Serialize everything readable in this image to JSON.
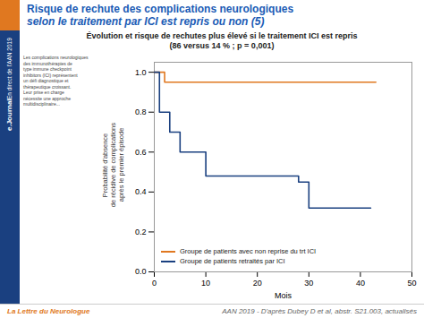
{
  "chart_data": {
    "type": "line",
    "line_style": "step",
    "title": "Risque de rechute des complications neurologiques\nselon le traitement par ICI est repris ou non (5)",
    "subtitle": "Évolution et risque de rechutes plus élevé si le traitement ICI est repris\n(86 versus 14 % ; p = 0,001)",
    "x_label": "Mois",
    "y_label": "Probabilité d'absence\nde récidive de complications\naprès le premier épisode",
    "series": [
      {
        "name": "Groupe de patients avec non reprise du trt ICI",
        "color": "#E07820",
        "x": [
          0,
          0,
          2,
          43
        ],
        "values": [
          1.0,
          1.0,
          0.95,
          0.95
        ]
      },
      {
        "name": "Groupe de patients retraités par ICI",
        "color": "#1A4080",
        "x": [
          0,
          1,
          3,
          5,
          10,
          28,
          30,
          36,
          42
        ],
        "values": [
          1.0,
          0.8,
          0.7,
          0.6,
          0.48,
          0.45,
          0.32,
          0.32,
          0.32
        ]
      }
    ],
    "xlim": [
      0,
      50
    ],
    "ylim": [
      0.0,
      1.05
    ],
    "xticks": [
      0,
      10,
      20,
      30,
      40,
      50
    ],
    "yticks": [
      {
        "value": 0,
        "label": "0.0"
      },
      0.2,
      0.4,
      0.6,
      0.8,
      {
        "value": 1,
        "label": "1.0"
      }
    ],
    "grid": false,
    "legend": "lower left",
    "annotations": [
      "La Lettre du Neurologue",
      "AAN 2019 - D'après Dubey D et al, abstr. S21.003, actualisés",
      "e.Journal",
      "En direct de l'AAN 2019",
      "Les complications neurologiques\ndes immunothérapies de\ntype immune checkpoint\ninhibitors (ICI) représentent\nun défi diagnostique et\nthérapeutique croissant.\nLeur prise en charge\nnécessite une approche\nmultidisciplinaire..."
    ]
  }
}
